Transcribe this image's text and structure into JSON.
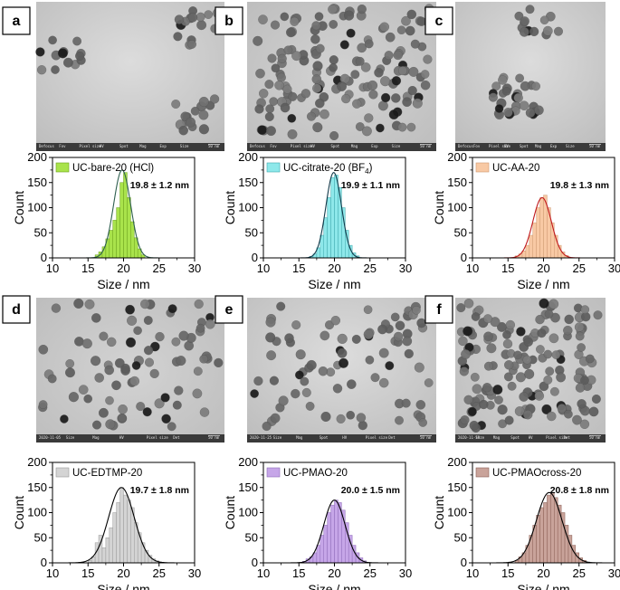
{
  "panels": [
    {
      "label": "a",
      "particle_density": "sparse",
      "image_info": [
        "Defocus",
        "Fov",
        "Pixel size",
        "HV",
        "Spot",
        "Mag",
        "Exp",
        "Size",
        "50 nm"
      ]
    },
    {
      "label": "b",
      "particle_density": "dense",
      "image_info": [
        "Defocus",
        "Fov",
        "Pixel size",
        "HV",
        "Spot",
        "Mag",
        "Exp",
        "Size",
        "50 nm"
      ]
    },
    {
      "label": "c",
      "particle_density": "sparse",
      "image_info": [
        "Defocus",
        "Fov",
        "Pixel size",
        "HV",
        "Spot",
        "Mag",
        "Exp",
        "Size",
        "50 nm"
      ]
    },
    {
      "label": "d",
      "particle_density": "medium",
      "image_info": [
        "2020-11-05",
        "Size",
        "Mag",
        "HV",
        "Pixel size",
        "Det",
        "50 nm"
      ]
    },
    {
      "label": "e",
      "particle_density": "medium",
      "image_info": [
        "2020-11-25",
        "Size",
        "Mag",
        "Spot",
        "HV",
        "Pixel size",
        "Det",
        "50 nm"
      ]
    },
    {
      "label": "f",
      "particle_density": "dense",
      "image_info": [
        "2020-11-19",
        "Size",
        "Mag",
        "Spot",
        "HV",
        "Pixel size",
        "Det",
        "50 nm"
      ]
    }
  ],
  "chart_data": [
    {
      "type": "bar",
      "panel": "a",
      "legend": "UC-bare-20 (HCl)",
      "legend_sub": "",
      "annotation": "19.8 ± 1.2 nm",
      "xlabel": "Size / nm",
      "ylabel": "Count",
      "xlim": [
        10,
        30
      ],
      "ylim": [
        0,
        200
      ],
      "xticks": [
        10,
        15,
        20,
        25,
        30
      ],
      "yticks": [
        0,
        50,
        100,
        150,
        200
      ],
      "bin_width": 0.5,
      "fill": "#a9e34b",
      "line": "#2e5f4f",
      "edge": "#6aa01c",
      "fit": {
        "mean": 19.8,
        "sd": 1.2,
        "peak": 175
      },
      "bins": [
        16,
        16.5,
        17,
        17.5,
        18,
        18.5,
        19,
        19.5,
        20,
        20.5,
        21,
        21.5,
        22,
        22.5
      ],
      "counts": [
        6,
        12,
        22,
        38,
        55,
        75,
        100,
        150,
        170,
        120,
        72,
        40,
        18,
        6
      ]
    },
    {
      "type": "bar",
      "panel": "b",
      "legend": "UC-citrate-20 (BF",
      "legend_sub": "4",
      "annotation": "19.9 ± 1.1 nm",
      "xlabel": "Size / nm",
      "ylabel": "Count",
      "xlim": [
        10,
        30
      ],
      "ylim": [
        0,
        200
      ],
      "xticks": [
        10,
        15,
        20,
        25,
        30
      ],
      "yticks": [
        0,
        50,
        100,
        150,
        200
      ],
      "bin_width": 0.5,
      "fill": "#8ee8ea",
      "line": "#123a4a",
      "edge": "#3fa8ad",
      "fit": {
        "mean": 19.9,
        "sd": 1.1,
        "peak": 170
      },
      "bins": [
        16.5,
        17,
        17.5,
        18,
        18.5,
        19,
        19.5,
        20,
        20.5,
        21,
        21.5,
        22,
        22.5,
        23
      ],
      "counts": [
        3,
        8,
        20,
        45,
        80,
        120,
        160,
        165,
        140,
        100,
        55,
        25,
        10,
        4
      ]
    },
    {
      "type": "bar",
      "panel": "c",
      "legend": "UC-AA-20",
      "legend_sub": "",
      "annotation": "19.8 ± 1.3 nm",
      "xlabel": "Size / nm",
      "ylabel": "Count",
      "xlim": [
        10,
        30
      ],
      "ylim": [
        0,
        200
      ],
      "xticks": [
        10,
        15,
        20,
        25,
        30
      ],
      "yticks": [
        0,
        50,
        100,
        150,
        200
      ],
      "bin_width": 0.5,
      "fill": "#f8c9a4",
      "line": "#c0181c",
      "edge": "#cf9a72",
      "fit": {
        "mean": 19.8,
        "sd": 1.3,
        "peak": 120
      },
      "bins": [
        16,
        16.5,
        17,
        17.5,
        18,
        18.5,
        19,
        19.5,
        20,
        20.5,
        21,
        21.5,
        22,
        22.5,
        23
      ],
      "counts": [
        4,
        8,
        14,
        25,
        45,
        70,
        100,
        120,
        125,
        100,
        70,
        45,
        25,
        12,
        5
      ]
    },
    {
      "type": "bar",
      "panel": "d",
      "legend": "UC-EDTMP-20",
      "legend_sub": "",
      "annotation": "19.7 ± 1.8 nm",
      "xlabel": "Size / nm",
      "ylabel": "Count",
      "xlim": [
        10,
        30
      ],
      "ylim": [
        0,
        200
      ],
      "xticks": [
        10,
        15,
        20,
        25,
        30
      ],
      "yticks": [
        0,
        50,
        100,
        150,
        200
      ],
      "bin_width": 0.5,
      "fill": "#d4d4d4",
      "line": "#000000",
      "edge": "#9a9a9a",
      "fit": {
        "mean": 19.7,
        "sd": 1.8,
        "peak": 150
      },
      "bins": [
        15,
        15.5,
        16,
        16.5,
        17,
        17.5,
        18,
        18.5,
        19,
        19.5,
        20,
        20.5,
        21,
        21.5,
        22,
        22.5,
        23,
        23.5,
        24,
        24.5
      ],
      "counts": [
        5,
        12,
        40,
        55,
        30,
        50,
        70,
        100,
        120,
        150,
        135,
        125,
        110,
        80,
        60,
        40,
        25,
        15,
        8,
        4
      ]
    },
    {
      "type": "bar",
      "panel": "e",
      "legend": "UC-PMAO-20",
      "legend_sub": "",
      "annotation": "20.0 ± 1.5 nm",
      "xlabel": "Size / nm",
      "ylabel": "Count",
      "xlim": [
        10,
        30
      ],
      "ylim": [
        0,
        200
      ],
      "xticks": [
        10,
        15,
        20,
        25,
        30
      ],
      "yticks": [
        0,
        50,
        100,
        150,
        200
      ],
      "bin_width": 0.5,
      "fill": "#c6a6e8",
      "line": "#000000",
      "edge": "#8e6bb8",
      "fit": {
        "mean": 20.0,
        "sd": 1.5,
        "peak": 125
      },
      "bins": [
        15.5,
        16,
        16.5,
        17,
        17.5,
        18,
        18.5,
        19,
        19.5,
        20,
        20.5,
        21,
        21.5,
        22,
        22.5,
        23,
        23.5,
        24
      ],
      "counts": [
        3,
        8,
        12,
        20,
        35,
        55,
        75,
        100,
        115,
        125,
        120,
        105,
        80,
        55,
        35,
        20,
        10,
        4
      ]
    },
    {
      "type": "bar",
      "panel": "f",
      "legend": "UC-PMAOcross-20",
      "legend_sub": "",
      "annotation": "20.8 ± 1.8 nm",
      "xlabel": "Size / nm",
      "ylabel": "Count",
      "xlim": [
        10,
        30
      ],
      "ylim": [
        0,
        200
      ],
      "xticks": [
        10,
        15,
        20,
        25,
        30
      ],
      "yticks": [
        0,
        50,
        100,
        150,
        200
      ],
      "bin_width": 0.5,
      "fill": "#c9a39a",
      "line": "#000000",
      "edge": "#8a5f55",
      "fit": {
        "mean": 20.8,
        "sd": 1.8,
        "peak": 140
      },
      "bins": [
        16,
        16.5,
        17,
        17.5,
        18,
        18.5,
        19,
        19.5,
        20,
        20.5,
        21,
        21.5,
        22,
        22.5,
        23,
        23.5,
        24,
        24.5,
        25,
        25.5
      ],
      "counts": [
        5,
        12,
        20,
        35,
        55,
        75,
        95,
        110,
        120,
        135,
        140,
        130,
        115,
        100,
        75,
        55,
        35,
        20,
        10,
        5
      ]
    }
  ]
}
